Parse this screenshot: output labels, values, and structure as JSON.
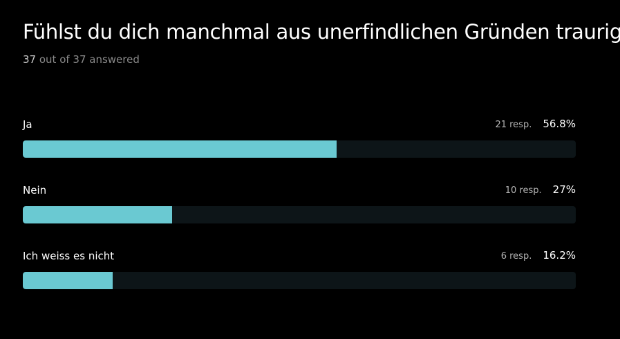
{
  "question": {
    "title": "Fühlst du dich manchmal aus unerfindlichen Gründen traurig?",
    "answered_count": "37",
    "answered_rest": " out of 37 answered"
  },
  "options": [
    {
      "label": "Ja",
      "responses": "21 resp.",
      "percent_label": "56.8%",
      "fraction": 0.568
    },
    {
      "label": "Nein",
      "responses": "10 resp.",
      "percent_label": "27%",
      "fraction": 0.27
    },
    {
      "label": "Ich weiss es nicht",
      "responses": "6 resp.",
      "percent_label": "16.2%",
      "fraction": 0.162
    }
  ],
  "colors": {
    "background": "#000000",
    "bar_fill": "#6ac9d2",
    "bar_track": "#0d1518"
  }
}
